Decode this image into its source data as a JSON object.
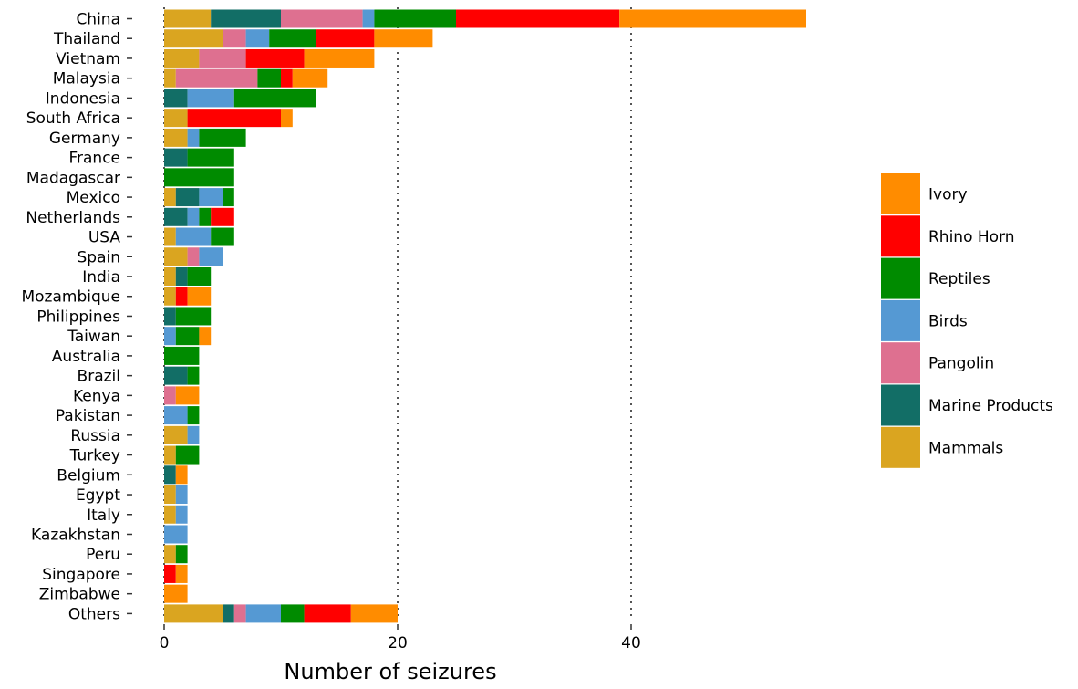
{
  "chart_data": {
    "type": "bar",
    "orientation": "horizontal",
    "stacked": true,
    "xlabel": "Number of seizures",
    "ylabel": "",
    "xlim": [
      0,
      55
    ],
    "xticks": [
      0,
      20,
      40
    ],
    "grid": "dotted vertical at x ticks",
    "legend_position": "right",
    "categories": [
      "China",
      "Thailand",
      "Vietnam",
      "Malaysia",
      "Indonesia",
      "South Africa",
      "Germany",
      "France",
      "Madagascar",
      "Mexico",
      "Netherlands",
      "USA",
      "Spain",
      "India",
      "Mozambique",
      "Philippines",
      "Taiwan",
      "Australia",
      "Brazil",
      "Kenya",
      "Pakistan",
      "Russia",
      "Turkey",
      "Belgium",
      "Egypt",
      "Italy",
      "Kazakhstan",
      "Peru",
      "Singapore",
      "Zimbabwe",
      "Others"
    ],
    "series": [
      {
        "name": "Mammals",
        "color": "#DAA520",
        "values": [
          4,
          5,
          3,
          1,
          0,
          2,
          2,
          0,
          0,
          1,
          0,
          1,
          2,
          1,
          1,
          0,
          0,
          0,
          0,
          0,
          0,
          2,
          1,
          0,
          1,
          1,
          0,
          1,
          0,
          0,
          5
        ]
      },
      {
        "name": "Marine Products",
        "color": "#126E66",
        "values": [
          6,
          0,
          0,
          0,
          2,
          0,
          0,
          2,
          0,
          2,
          2,
          0,
          0,
          1,
          0,
          1,
          0,
          0,
          2,
          0,
          0,
          0,
          0,
          1,
          0,
          0,
          0,
          0,
          0,
          0,
          1
        ]
      },
      {
        "name": "Pangolin",
        "color": "#DE7090",
        "values": [
          7,
          2,
          4,
          7,
          0,
          0,
          0,
          0,
          0,
          0,
          0,
          0,
          1,
          0,
          0,
          0,
          0,
          0,
          0,
          1,
          0,
          0,
          0,
          0,
          0,
          0,
          0,
          0,
          0,
          0,
          1
        ]
      },
      {
        "name": "Birds",
        "color": "#5599D3",
        "values": [
          1,
          2,
          0,
          0,
          4,
          0,
          1,
          0,
          0,
          2,
          1,
          3,
          2,
          0,
          0,
          0,
          1,
          0,
          0,
          0,
          2,
          1,
          0,
          0,
          1,
          1,
          2,
          0,
          0,
          0,
          3
        ]
      },
      {
        "name": "Reptiles",
        "color": "#008B00",
        "values": [
          7,
          4,
          0,
          2,
          7,
          0,
          4,
          4,
          6,
          1,
          1,
          2,
          0,
          2,
          0,
          3,
          2,
          3,
          1,
          0,
          1,
          0,
          2,
          0,
          0,
          0,
          0,
          1,
          0,
          0,
          2
        ]
      },
      {
        "name": "Rhino Horn",
        "color": "#FF0000",
        "values": [
          14,
          5,
          5,
          1,
          0,
          8,
          0,
          0,
          0,
          0,
          2,
          0,
          0,
          0,
          1,
          0,
          0,
          0,
          0,
          0,
          0,
          0,
          0,
          0,
          0,
          0,
          0,
          0,
          1,
          0,
          4
        ]
      },
      {
        "name": "Ivory",
        "color": "#FF8C00",
        "values": [
          16,
          5,
          6,
          3,
          0,
          1,
          0,
          0,
          0,
          0,
          0,
          0,
          0,
          0,
          2,
          0,
          1,
          0,
          0,
          2,
          0,
          0,
          0,
          1,
          0,
          0,
          0,
          0,
          1,
          2,
          4
        ]
      }
    ],
    "legend_order": [
      "Ivory",
      "Rhino Horn",
      "Reptiles",
      "Birds",
      "Pangolin",
      "Marine Products",
      "Mammals"
    ]
  }
}
